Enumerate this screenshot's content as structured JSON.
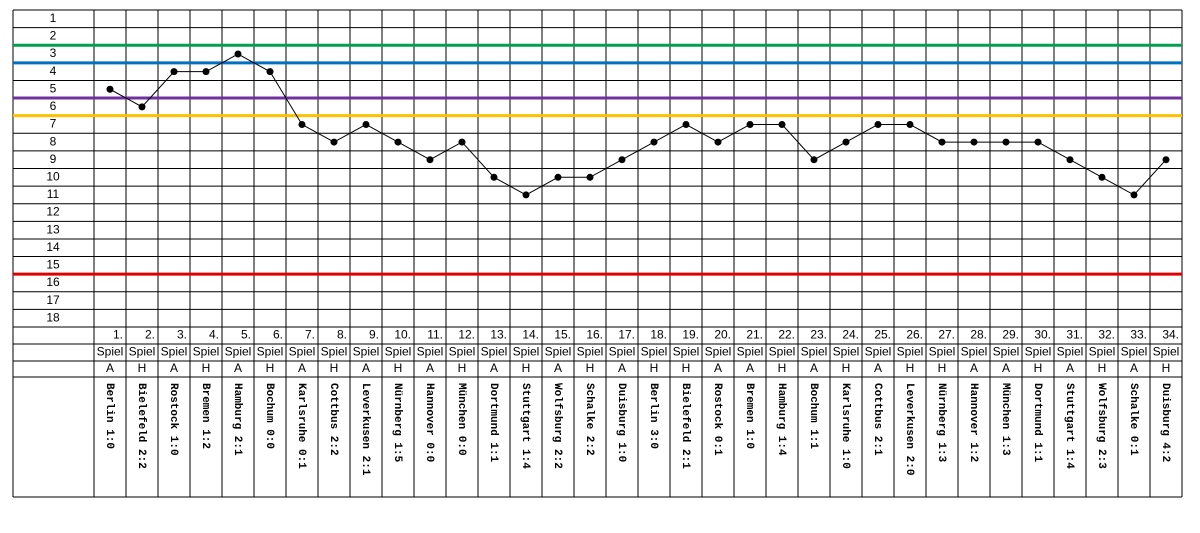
{
  "chart_data": {
    "type": "line",
    "categories": [
      "1.",
      "2.",
      "3.",
      "4.",
      "5.",
      "6.",
      "7.",
      "8.",
      "9.",
      "10.",
      "11.",
      "12.",
      "13.",
      "14.",
      "15.",
      "16.",
      "17.",
      "18.",
      "19.",
      "20.",
      "21.",
      "22.",
      "23.",
      "24.",
      "25.",
      "26.",
      "27.",
      "28.",
      "29.",
      "30.",
      "31.",
      "32.",
      "33.",
      "34."
    ],
    "values": [
      5,
      6,
      4,
      4,
      3,
      4,
      7,
      8,
      7,
      8,
      9,
      8,
      10,
      11,
      10,
      10,
      9,
      8,
      7,
      8,
      7,
      7,
      9,
      8,
      7,
      7,
      8,
      8,
      8,
      8,
      9,
      10,
      11,
      9
    ],
    "color": "#000000",
    "row_label": "Spiel",
    "venue": [
      "A",
      "H",
      "A",
      "H",
      "A",
      "H",
      "A",
      "H",
      "A",
      "H",
      "A",
      "H",
      "A",
      "H",
      "A",
      "H",
      "A",
      "H",
      "H",
      "A",
      "A",
      "H",
      "A",
      "H",
      "A",
      "H",
      "H",
      "A",
      "A",
      "H",
      "A",
      "H",
      "A",
      "H"
    ],
    "opponents": [
      "Berlin 1:0",
      "Bielefeld 2:2",
      "Rostock 1:0",
      "Bremen 1:2",
      "Hamburg 2:1",
      "Bochum 0:0",
      "Karlsruhe 0:1",
      "Cottbus 2:2",
      "Leverkusen 2:1",
      "Nürnberg 1:5",
      "Hannover 0:0",
      "München 0:0",
      "Dortmund 1:1",
      "Stuttgart 1:4",
      "Wolfsburg 2:2",
      "Schalke 2:2",
      "Duisburg 1:0",
      "Berlin 3:0",
      "Bielefeld 2:1",
      "Rostock 0:1",
      "Bremen 1:0",
      "Hamburg 1:4",
      "Bochum 1:1",
      "Karlsruhe 1:0",
      "Cottbus 2:1",
      "Leverkusen 2:0",
      "Nürnberg 1:3",
      "Hannover 1:2",
      "München 1:3",
      "Dortmund 1:1",
      "Stuttgart 1:4",
      "Wolfsburg 2:3",
      "Schalke 0:1",
      "Duisburg 4:2"
    ],
    "ylim": [
      0.5,
      18.5
    ],
    "yticks": [
      1,
      2,
      3,
      4,
      5,
      6,
      7,
      8,
      9,
      10,
      11,
      12,
      13,
      14,
      15,
      16,
      17,
      18
    ],
    "inverted": true,
    "reference_lines": [
      {
        "value": 2.5,
        "color": "#00a050"
      },
      {
        "value": 3.5,
        "color": "#0070c0"
      },
      {
        "value": 5.5,
        "color": "#7030a0"
      },
      {
        "value": 6.5,
        "color": "#ffc000"
      },
      {
        "value": 15.5,
        "color": "#e00000"
      }
    ]
  }
}
